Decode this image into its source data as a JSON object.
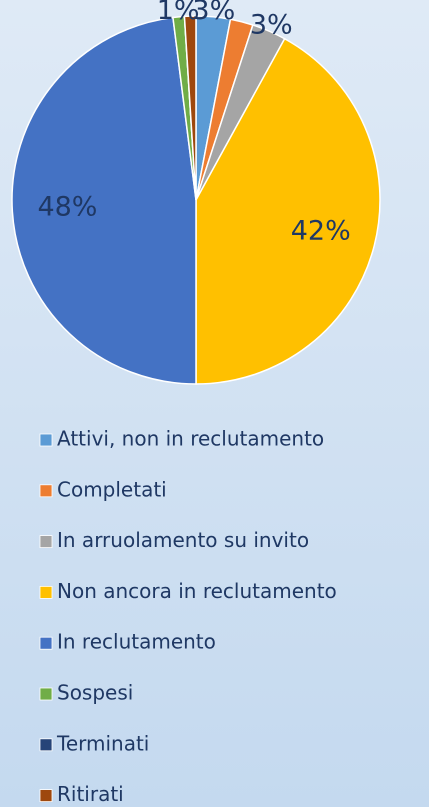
{
  "chart_data": {
    "type": "pie",
    "categories": [
      "Attivi, non in reclutamento",
      "Completati",
      "In arruolamento su invito",
      "Non ancora in reclutamento",
      "In reclutamento",
      "Sospesi",
      "Terminati",
      "Ritirati"
    ],
    "values": [
      3,
      2,
      3,
      42,
      48,
      1,
      0,
      1
    ],
    "value_labels": [
      "3%",
      null,
      "3%",
      "42%",
      "48%",
      "1%",
      null,
      null
    ],
    "colors": [
      "#5b9bd5",
      "#ed7d31",
      "#a5a5a5",
      "#ffc000",
      "#4472c4",
      "#70ad47",
      "#264478",
      "#9e480e"
    ],
    "legend": "bottom"
  }
}
